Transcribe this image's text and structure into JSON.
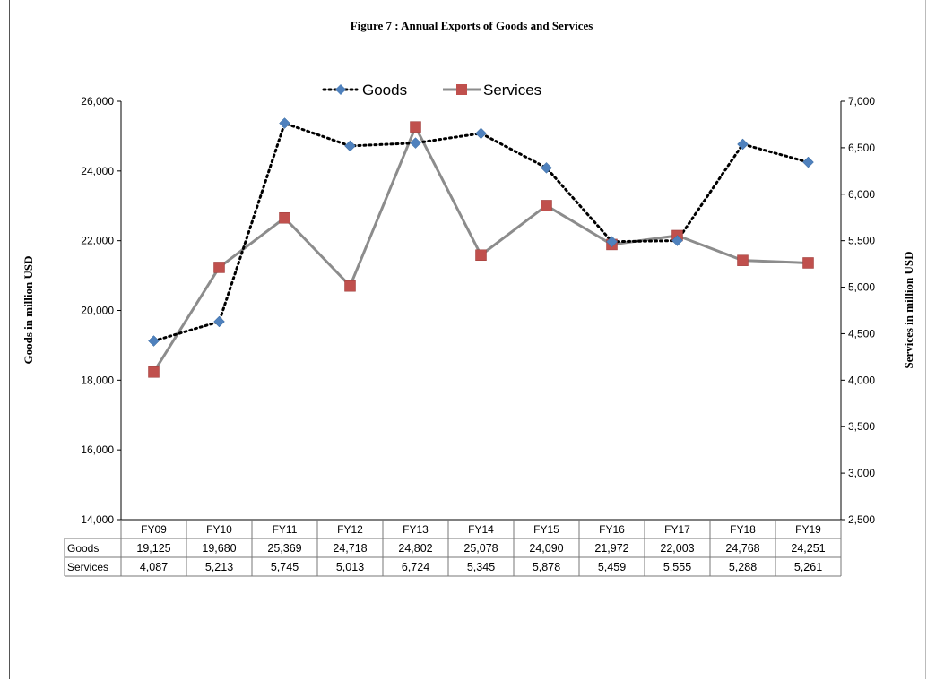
{
  "chart_data": {
    "type": "line",
    "title": "Figure  7 : Annual Exports of Goods and Services",
    "categories": [
      "FY09",
      "FY10",
      "FY11",
      "FY12",
      "FY13",
      "FY14",
      "FY15",
      "FY16",
      "FY17",
      "FY18",
      "FY19"
    ],
    "series": [
      {
        "name": "Goods",
        "axis": "left",
        "values": [
          19125,
          19680,
          25369,
          24718,
          24802,
          25078,
          24090,
          21972,
          22003,
          24768,
          24251
        ],
        "labels": [
          "19,125",
          "19,680",
          "25,369",
          "24,718",
          "24,802",
          "25,078",
          "24,090",
          "21,972",
          "22,003",
          "24,768",
          "24,251"
        ],
        "line_color": "#000000",
        "line_style": "dotted",
        "marker": "diamond",
        "marker_color": "#4f81bd"
      },
      {
        "name": "Services",
        "axis": "right",
        "values": [
          4087,
          5213,
          5745,
          5013,
          6724,
          5345,
          5878,
          5459,
          5555,
          5288,
          5261
        ],
        "labels": [
          "4,087",
          "5,213",
          "5,745",
          "5,013",
          "6,724",
          "5,345",
          "5,878",
          "5,459",
          "5,555",
          "5,288",
          "5,261"
        ],
        "line_color": "#8c8c8c",
        "line_style": "solid",
        "marker": "square",
        "marker_color": "#c0504d"
      }
    ],
    "ylabel": "Goods in million USD",
    "y2label": "Services in million USD",
    "ylim": [
      14000,
      26000
    ],
    "y2lim": [
      2500,
      7000
    ],
    "yticks": [
      "14,000",
      "16,000",
      "18,000",
      "20,000",
      "22,000",
      "24,000",
      "26,000"
    ],
    "y2ticks": [
      "2,500",
      "3,000",
      "3,500",
      "4,000",
      "4,500",
      "5,000",
      "5,500",
      "6,000",
      "6,500",
      "7,000"
    ],
    "legend_position": "top",
    "grid": false,
    "data_table": true,
    "table_row_headers": [
      "Goods",
      "Services"
    ]
  }
}
